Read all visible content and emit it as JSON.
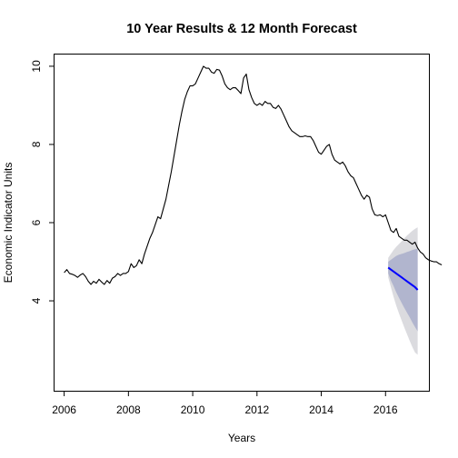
{
  "chart_data": {
    "type": "line",
    "title": "10 Year Results & 12 Month Forecast",
    "xlabel": "Years",
    "ylabel": "Economic Indicator Units",
    "xlim": [
      2005.7,
      2017.35
    ],
    "ylim": [
      1.7,
      10.3
    ],
    "x_ticks": [
      2006,
      2008,
      2010,
      2012,
      2014,
      2016
    ],
    "y_ticks": [
      4,
      6,
      8,
      10
    ],
    "grid": false,
    "legend": "none",
    "colors": {
      "observed": "#000000",
      "forecast": "#0000FF",
      "band_80": "#B1B5CE",
      "band_95": "#DBDBDF"
    },
    "series": [
      {
        "role": "observed",
        "x_start": 2006.0,
        "x_step": 0.083333,
        "values": [
          4.72,
          4.8,
          4.7,
          4.68,
          4.65,
          4.6,
          4.66,
          4.7,
          4.62,
          4.5,
          4.42,
          4.5,
          4.45,
          4.55,
          4.48,
          4.42,
          4.52,
          4.45,
          4.58,
          4.62,
          4.7,
          4.65,
          4.7,
          4.7,
          4.75,
          4.95,
          4.85,
          4.9,
          5.05,
          4.95,
          5.2,
          5.4,
          5.6,
          5.75,
          5.95,
          6.15,
          6.1,
          6.35,
          6.6,
          6.95,
          7.3,
          7.7,
          8.1,
          8.5,
          8.85,
          9.15,
          9.35,
          9.5,
          9.5,
          9.55,
          9.7,
          9.85,
          10.0,
          9.95,
          9.95,
          9.85,
          9.82,
          9.92,
          9.9,
          9.75,
          9.55,
          9.45,
          9.4,
          9.45,
          9.45,
          9.38,
          9.3,
          9.7,
          9.8,
          9.4,
          9.2,
          9.05,
          9.0,
          9.05,
          9.0,
          9.1,
          9.05,
          9.05,
          8.95,
          8.92,
          9.0,
          8.9,
          8.75,
          8.6,
          8.45,
          8.35,
          8.3,
          8.25,
          8.2,
          8.2,
          8.22,
          8.2,
          8.2,
          8.1,
          7.95,
          7.8,
          7.75,
          7.85,
          7.95,
          8.0,
          7.75,
          7.6,
          7.55,
          7.5,
          7.55,
          7.45,
          7.3,
          7.2,
          7.15,
          7.0,
          6.85,
          6.7,
          6.6,
          6.7,
          6.65,
          6.35,
          6.2,
          6.18,
          6.2,
          6.15,
          6.2,
          6.0,
          5.8,
          5.75,
          5.85,
          5.65,
          5.6,
          5.55,
          5.55,
          5.5,
          5.45,
          5.5,
          5.35,
          5.25,
          5.2,
          5.1,
          5.05,
          5.02,
          5.0,
          5.0,
          4.95,
          4.92
        ]
      },
      {
        "role": "forecast",
        "x": [
          2016.083,
          2016.167,
          2016.25,
          2016.333,
          2016.417,
          2016.5,
          2016.583,
          2016.667,
          2016.75,
          2016.833,
          2016.917,
          2017.0
        ],
        "values": [
          4.85,
          4.8,
          4.75,
          4.7,
          4.65,
          4.6,
          4.55,
          4.5,
          4.45,
          4.4,
          4.35,
          4.28
        ],
        "lo80": [
          4.7,
          4.52,
          4.38,
          4.22,
          4.08,
          3.95,
          3.82,
          3.7,
          3.58,
          3.45,
          3.33,
          3.22
        ],
        "hi80": [
          5.0,
          5.05,
          5.1,
          5.15,
          5.18,
          5.2,
          5.22,
          5.25,
          5.27,
          5.3,
          5.32,
          5.33
        ],
        "lo95": [
          4.6,
          4.35,
          4.1,
          3.88,
          3.68,
          3.5,
          3.32,
          3.15,
          2.98,
          2.82,
          2.68,
          2.62
        ],
        "hi95": [
          5.1,
          5.2,
          5.3,
          5.38,
          5.45,
          5.52,
          5.6,
          5.67,
          5.73,
          5.79,
          5.84,
          5.88
        ]
      }
    ]
  }
}
